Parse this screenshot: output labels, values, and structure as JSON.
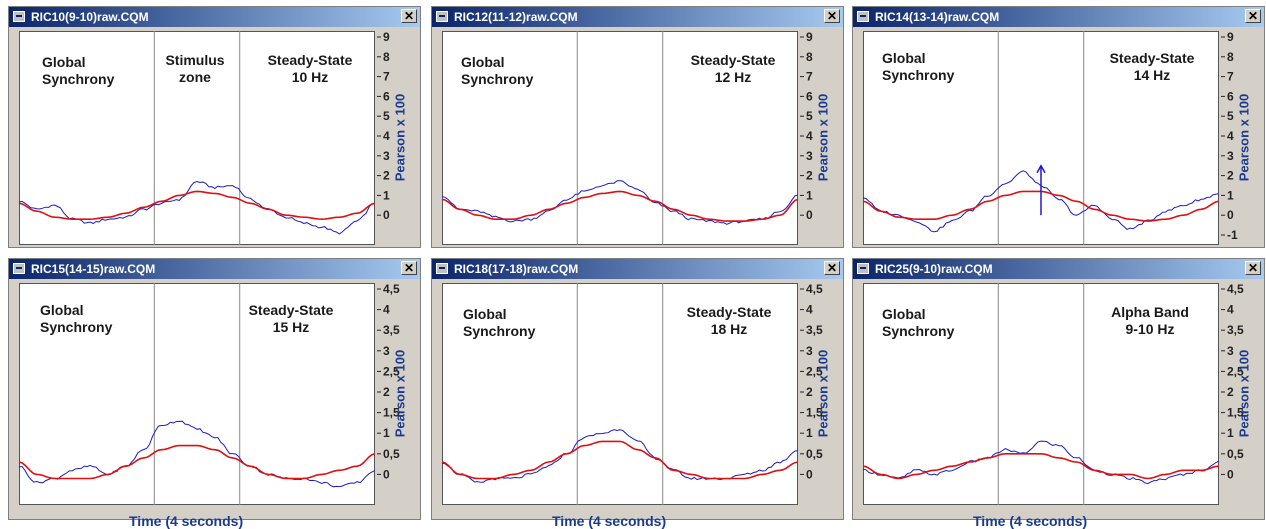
{
  "colors": {
    "title_bar_start": "#0a246a",
    "title_bar_end": "#a6caf0",
    "raw_series": "#1a1acc",
    "smoothed_series": "#e01010",
    "axis_label": "#1a3a8f"
  },
  "icons": {
    "window_icon": "window-app-icon",
    "close": "close-icon"
  },
  "close_glyph": "✕",
  "x_axis_label": "Time (4 seconds)",
  "y_axis_label": "Pearson x 100",
  "chart_data": [
    {
      "type": "line",
      "window_title": "RIC10(9-10)raw.CQM",
      "annotations": [
        {
          "text": "Global\nSynchrony"
        },
        {
          "text": "Stimulus\nzone"
        },
        {
          "text": "Steady-State\n10 Hz"
        }
      ],
      "ylabel": "Pearson x 100",
      "ylim": [
        -1,
        9
      ],
      "yticks": [
        "9",
        "8",
        "7",
        "6",
        "5",
        "4",
        "3",
        "2",
        "1",
        "0"
      ],
      "ytick_values": [
        9,
        8,
        7,
        6,
        5,
        4,
        3,
        2,
        1,
        0
      ],
      "grid": "two vertical dividers",
      "xlabel": "",
      "x": [
        0,
        0.05,
        0.1,
        0.15,
        0.2,
        0.25,
        0.3,
        0.35,
        0.4,
        0.45,
        0.5,
        0.55,
        0.6,
        0.65,
        0.7,
        0.75,
        0.8,
        0.85,
        0.9,
        0.95,
        1
      ],
      "series": [
        {
          "color": "#1a1acc",
          "values": [
            0.7,
            0.3,
            0.5,
            -0.2,
            -0.4,
            -0.2,
            -0.1,
            0.3,
            0.6,
            0.8,
            1.7,
            1.4,
            1.5,
            0.8,
            0.3,
            -0.1,
            -0.4,
            -0.6,
            -0.9,
            -0.3,
            0.6
          ]
        },
        {
          "color": "#e01010",
          "values": [
            0.6,
            0.2,
            -0.1,
            -0.2,
            -0.2,
            -0.1,
            0.1,
            0.4,
            0.7,
            1.0,
            1.2,
            1.1,
            0.9,
            0.6,
            0.3,
            0.0,
            -0.1,
            -0.2,
            -0.1,
            0.1,
            0.6
          ]
        }
      ]
    },
    {
      "type": "line",
      "window_title": "RIC12(11-12)raw.CQM",
      "annotations": [
        {
          "text": "Global\nSynchrony"
        },
        {
          "text": "Steady-State\n12 Hz"
        }
      ],
      "ylabel": "Pearson x 100",
      "ylim": [
        -1,
        9
      ],
      "yticks": [
        "9",
        "8",
        "7",
        "6",
        "5",
        "4",
        "3",
        "2",
        "1",
        "0"
      ],
      "ytick_values": [
        9,
        8,
        7,
        6,
        5,
        4,
        3,
        2,
        1,
        0
      ],
      "grid": "two vertical dividers",
      "xlabel": "",
      "x": [
        0,
        0.05,
        0.1,
        0.15,
        0.2,
        0.25,
        0.3,
        0.35,
        0.4,
        0.45,
        0.5,
        0.55,
        0.6,
        0.65,
        0.7,
        0.75,
        0.8,
        0.85,
        0.9,
        0.95,
        1
      ],
      "series": [
        {
          "color": "#1a1acc",
          "values": [
            1.0,
            0.3,
            0.2,
            -0.1,
            -0.3,
            -0.2,
            0.2,
            0.8,
            1.2,
            1.5,
            1.7,
            1.3,
            0.6,
            0.2,
            -0.2,
            -0.3,
            -0.4,
            -0.3,
            -0.2,
            0.2,
            1.0
          ]
        },
        {
          "color": "#e01010",
          "values": [
            0.8,
            0.3,
            0.0,
            -0.2,
            -0.2,
            0.0,
            0.3,
            0.6,
            0.9,
            1.1,
            1.2,
            1.0,
            0.7,
            0.3,
            0.0,
            -0.2,
            -0.3,
            -0.3,
            -0.2,
            0.0,
            0.8
          ]
        }
      ]
    },
    {
      "type": "line",
      "window_title": "RIC14(13-14)raw.CQM",
      "annotations": [
        {
          "text": "Global\nSynchrony"
        },
        {
          "text": "Steady-State\n14 Hz"
        }
      ],
      "ylabel": "Pearson x 100",
      "ylim": [
        -1,
        9
      ],
      "yticks": [
        "9",
        "8",
        "7",
        "6",
        "5",
        "4",
        "3",
        "2",
        "1",
        "0",
        "-1"
      ],
      "ytick_values": [
        9,
        8,
        7,
        6,
        5,
        4,
        3,
        2,
        1,
        0,
        -1
      ],
      "grid": "two vertical dividers",
      "xlabel": "",
      "x": [
        0,
        0.05,
        0.1,
        0.15,
        0.2,
        0.25,
        0.3,
        0.35,
        0.4,
        0.45,
        0.5,
        0.55,
        0.6,
        0.65,
        0.7,
        0.75,
        0.8,
        0.85,
        0.9,
        0.95,
        1
      ],
      "series": [
        {
          "color": "#1a1acc",
          "values": [
            0.9,
            0.2,
            0.0,
            -0.3,
            -0.8,
            -0.3,
            0.2,
            1.0,
            1.6,
            2.2,
            1.5,
            0.8,
            0.0,
            0.5,
            -0.2,
            -0.7,
            -0.3,
            0.2,
            0.5,
            0.8,
            1.1
          ]
        },
        {
          "color": "#e01010",
          "values": [
            0.7,
            0.2,
            -0.1,
            -0.2,
            -0.2,
            0.0,
            0.3,
            0.7,
            1.0,
            1.2,
            1.2,
            1.0,
            0.7,
            0.3,
            0.0,
            -0.2,
            -0.3,
            -0.2,
            0.0,
            0.3,
            0.7
          ]
        }
      ],
      "marker": {
        "type": "arrow",
        "x": 0.5,
        "from": 0,
        "to": 2.5
      }
    },
    {
      "type": "line",
      "window_title": "RIC15(14-15)raw.CQM",
      "annotations": [
        {
          "text": "Global\nSynchrony"
        },
        {
          "text": "Steady-State\n15 Hz"
        }
      ],
      "ylabel": "Pearson x 100",
      "ylim": [
        -0.5,
        4.5
      ],
      "yticks": [
        "4,5",
        "4",
        "3,5",
        "3",
        "2,5",
        "2",
        "1,5",
        "1",
        "0,5",
        "0"
      ],
      "ytick_values": [
        4.5,
        4,
        3.5,
        3,
        2.5,
        2,
        1.5,
        1,
        0.5,
        0
      ],
      "grid": "two vertical dividers",
      "xlabel": "Time (4 seconds)",
      "x": [
        0,
        0.05,
        0.1,
        0.15,
        0.2,
        0.25,
        0.3,
        0.35,
        0.4,
        0.45,
        0.5,
        0.55,
        0.6,
        0.65,
        0.7,
        0.75,
        0.8,
        0.85,
        0.9,
        0.95,
        1
      ],
      "series": [
        {
          "color": "#1a1acc",
          "values": [
            0.2,
            -0.2,
            -0.1,
            0.1,
            0.2,
            0.0,
            0.2,
            0.6,
            1.2,
            1.3,
            1.1,
            0.9,
            0.5,
            0.2,
            0.0,
            -0.1,
            -0.1,
            -0.2,
            -0.3,
            -0.2,
            0.1
          ]
        },
        {
          "color": "#e01010",
          "values": [
            0.3,
            0.0,
            -0.1,
            -0.1,
            -0.1,
            0.0,
            0.2,
            0.4,
            0.6,
            0.7,
            0.7,
            0.6,
            0.4,
            0.2,
            0.0,
            -0.1,
            -0.1,
            0.0,
            0.1,
            0.2,
            0.5
          ]
        }
      ]
    },
    {
      "type": "line",
      "window_title": "RIC18(17-18)raw.CQM",
      "annotations": [
        {
          "text": "Global\nSynchrony"
        },
        {
          "text": "Steady-State\n18 Hz"
        }
      ],
      "ylabel": "Pearson x 100",
      "ylim": [
        -0.5,
        4.5
      ],
      "yticks": [
        "4,5",
        "4",
        "3,5",
        "3",
        "2,5",
        "2",
        "1,5",
        "1",
        "0,5",
        "0"
      ],
      "ytick_values": [
        4.5,
        4,
        3.5,
        3,
        2.5,
        2,
        1.5,
        1,
        0.5,
        0
      ],
      "grid": "two vertical dividers",
      "xlabel": "Time (4 seconds)",
      "x": [
        0,
        0.05,
        0.1,
        0.15,
        0.2,
        0.25,
        0.3,
        0.35,
        0.4,
        0.45,
        0.5,
        0.55,
        0.6,
        0.65,
        0.7,
        0.75,
        0.8,
        0.85,
        0.9,
        0.95,
        1
      ],
      "series": [
        {
          "color": "#1a1acc",
          "values": [
            0.3,
            0.0,
            -0.2,
            -0.1,
            -0.1,
            0.0,
            0.2,
            0.5,
            0.9,
            1.0,
            1.1,
            0.8,
            0.4,
            0.1,
            -0.1,
            -0.1,
            -0.1,
            0.0,
            0.1,
            0.3,
            0.6
          ]
        },
        {
          "color": "#e01010",
          "values": [
            0.3,
            0.0,
            -0.1,
            -0.1,
            0.0,
            0.1,
            0.3,
            0.5,
            0.7,
            0.8,
            0.8,
            0.6,
            0.4,
            0.1,
            0.0,
            -0.1,
            -0.1,
            -0.1,
            0.0,
            0.1,
            0.3
          ]
        }
      ]
    },
    {
      "type": "line",
      "window_title": "RIC25(9-10)raw.CQM",
      "annotations": [
        {
          "text": "Global\nSynchrony"
        },
        {
          "text": "Alpha Band\n9-10 Hz"
        }
      ],
      "ylabel": "Pearson x 100",
      "ylim": [
        -0.5,
        4.5
      ],
      "yticks": [
        "4,5",
        "4",
        "3,5",
        "3",
        "2,5",
        "2",
        "1,5",
        "1",
        "0,5",
        "0"
      ],
      "ytick_values": [
        4.5,
        4,
        3.5,
        3,
        2.5,
        2,
        1.5,
        1,
        0.5,
        0
      ],
      "grid": "two vertical dividers",
      "xlabel": "Time (4 seconds)",
      "x": [
        0,
        0.05,
        0.1,
        0.15,
        0.2,
        0.25,
        0.3,
        0.35,
        0.4,
        0.45,
        0.5,
        0.55,
        0.6,
        0.65,
        0.7,
        0.75,
        0.8,
        0.85,
        0.9,
        0.95,
        1
      ],
      "series": [
        {
          "color": "#1a1acc",
          "values": [
            0.1,
            0.0,
            -0.1,
            0.1,
            0.0,
            0.1,
            0.3,
            0.4,
            0.6,
            0.5,
            0.8,
            0.7,
            0.4,
            0.1,
            0.0,
            -0.1,
            -0.2,
            -0.1,
            0.0,
            0.1,
            0.3
          ]
        },
        {
          "color": "#e01010",
          "values": [
            0.2,
            0.0,
            -0.1,
            0.0,
            0.1,
            0.2,
            0.3,
            0.4,
            0.5,
            0.5,
            0.5,
            0.4,
            0.3,
            0.1,
            0.0,
            0.0,
            -0.1,
            0.0,
            0.1,
            0.1,
            0.2
          ]
        }
      ]
    }
  ]
}
